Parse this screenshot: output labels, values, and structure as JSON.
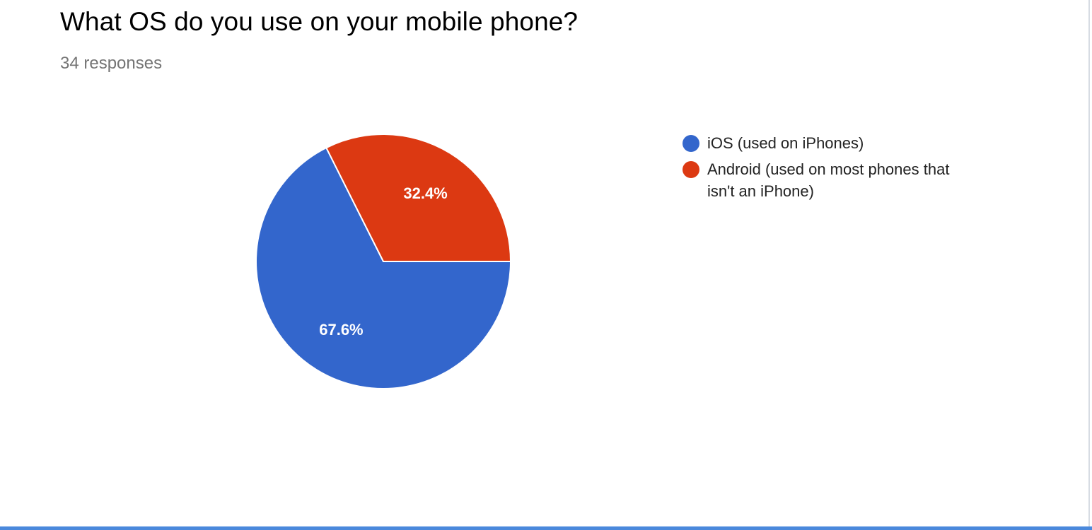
{
  "question": {
    "title": "What OS do you use on your mobile phone?",
    "responses": "34 responses"
  },
  "chart_data": {
    "type": "pie",
    "title": "What OS do you use on your mobile phone?",
    "slices": [
      {
        "name": "iOS (used on iPhones)",
        "value": 67.6,
        "label": "67.6%",
        "color": "#3366cc"
      },
      {
        "name": "Android (used on most phones that isn't an iPhone)",
        "value": 32.4,
        "label": "32.4%",
        "color": "#dc3912"
      }
    ],
    "legend_position": "right"
  },
  "colors": {
    "accent": "#4a89dc",
    "title": "#000000",
    "subtitle": "#757575"
  }
}
